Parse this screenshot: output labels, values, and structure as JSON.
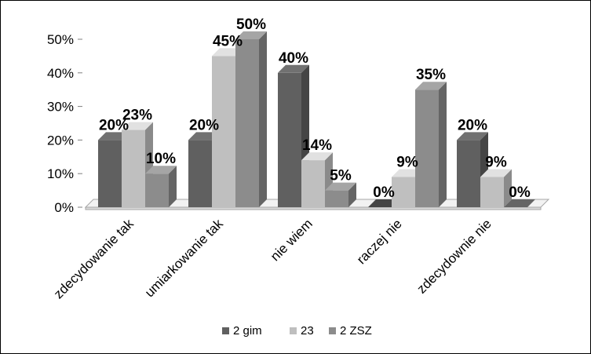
{
  "chart_data": {
    "type": "bar",
    "categories": [
      "zdecydowanie tak",
      "umiarkowanie tak",
      "nie wiem",
      "raczej nie",
      "zdecydownie nie"
    ],
    "series": [
      {
        "name": "2 gim",
        "values": [
          20,
          20,
          40,
          0,
          20
        ],
        "labels": [
          "20%",
          "20%",
          "40%",
          "0%",
          "20%"
        ],
        "color": "#606060"
      },
      {
        "name": "23",
        "values": [
          23,
          45,
          14,
          9,
          9
        ],
        "labels": [
          "23%",
          "45%",
          "14%",
          "9%",
          "9%"
        ],
        "color": "#bfbfbf"
      },
      {
        "name": "2 ZSZ",
        "values": [
          10,
          50,
          5,
          35,
          0
        ],
        "labels": [
          "10%",
          "50%",
          "5%",
          "35%",
          "0%"
        ],
        "color": "#8c8c8c"
      }
    ],
    "y_ticks": [
      "0%",
      "10%",
      "20%",
      "30%",
      "40%",
      "50%"
    ],
    "ylim": [
      0,
      50
    ],
    "title": "",
    "xlabel": "",
    "ylabel": "",
    "legend_position": "bottom",
    "style": "3d-clustered-column",
    "grid": false
  }
}
